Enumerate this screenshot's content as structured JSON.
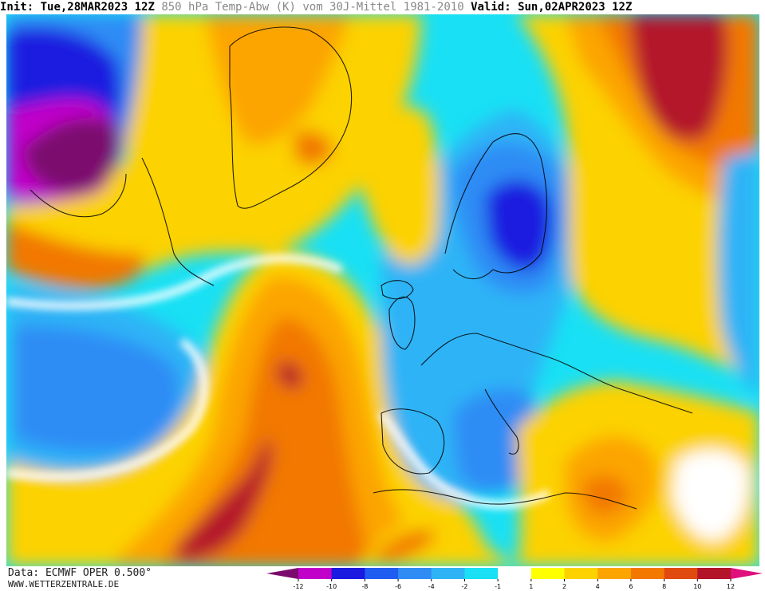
{
  "header": {
    "init_label": "Init:",
    "init_value": "Tue,28MAR2023 12Z",
    "title": "850 hPa Temp-Abw (K) vom 30J-Mittel 1981-2010",
    "valid_label": "Valid:",
    "valid_value": "Sun,02APR2023 12Z"
  },
  "footer": {
    "data_source": "Data: ECMWF OPER 0.500°",
    "website": "WWW.WETTERZENTRALE.DE"
  },
  "legend": {
    "ticks": [
      "-12",
      "-10",
      "-8",
      "-6",
      "-4",
      "-2",
      "-1",
      "1",
      "2",
      "4",
      "6",
      "8",
      "10",
      "12"
    ],
    "colors": [
      "#7b0a6e",
      "#c100c9",
      "#1a1ae0",
      "#1f5cf0",
      "#2f8cf5",
      "#2eb4f6",
      "#19e0f4",
      "#ffffff",
      "#ffff00",
      "#fcd200",
      "#fca400",
      "#f27800",
      "#e04a0f",
      "#b4142a",
      "#e0107d"
    ]
  },
  "colors": {
    "cold_strong": "#1a1ae0",
    "cold_mid": "#2f8cf5",
    "cold_light": "#19e0f4",
    "warm_light": "#fcd200",
    "warm_mid": "#f27800",
    "warm_strong": "#b4142a"
  }
}
